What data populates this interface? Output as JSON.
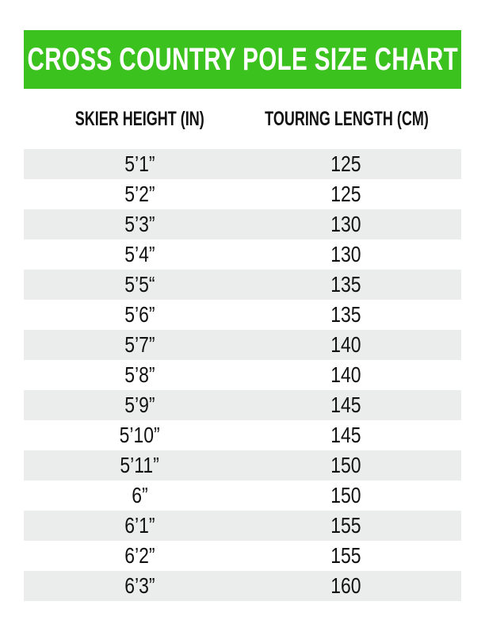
{
  "colors": {
    "banner": "#3cc21e",
    "stripe": "#ebedec",
    "text": "#111111"
  },
  "chart_data": {
    "type": "table",
    "title": "CROSS COUNTRY POLE SIZE CHART",
    "columns": [
      "SKIER HEIGHT (IN)",
      "TOURING LENGTH (CM)"
    ],
    "rows": [
      [
        "5’1”",
        "125"
      ],
      [
        "5’2”",
        "125"
      ],
      [
        "5’3”",
        "130"
      ],
      [
        "5’4”",
        "130"
      ],
      [
        "5’5“",
        "135"
      ],
      [
        "5’6”",
        "135"
      ],
      [
        "5’7”",
        "140"
      ],
      [
        "5’8”",
        "140"
      ],
      [
        "5’9”",
        "145"
      ],
      [
        "5’10”",
        "145"
      ],
      [
        "5’11”",
        "150"
      ],
      [
        "6”",
        "150"
      ],
      [
        "6’1”",
        "155"
      ],
      [
        "6’2”",
        "155"
      ],
      [
        "6’3”",
        "160"
      ]
    ]
  }
}
